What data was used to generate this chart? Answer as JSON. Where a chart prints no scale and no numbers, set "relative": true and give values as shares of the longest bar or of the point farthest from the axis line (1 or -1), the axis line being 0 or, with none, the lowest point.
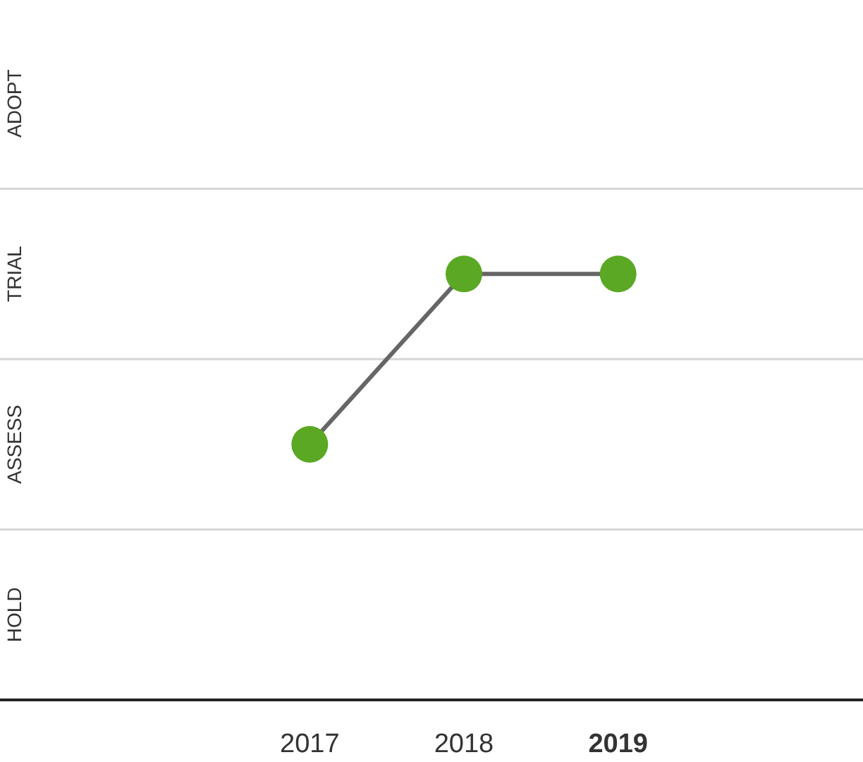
{
  "chart_data": {
    "type": "line",
    "categories": [
      "2017",
      "2018",
      "2019"
    ],
    "relative": true,
    "series": [
      {
        "color": "#5aa823",
        "values": [
          0.6,
          1,
          1
        ]
      }
    ],
    "ref_lines": [
      {
        "axis": "y",
        "value": 0.4,
        "color": "#d6d6d6"
      },
      {
        "axis": "y",
        "value": 0.8,
        "color": "#d6d6d6"
      },
      {
        "axis": "y",
        "value": 1.2,
        "color": "#d6d6d6"
      }
    ],
    "annotations": [
      "HOLD",
      "ASSESS",
      "TRIAL",
      "ADOPT"
    ],
    "legend": false,
    "marker": "circle",
    "line_style": "solid"
  }
}
